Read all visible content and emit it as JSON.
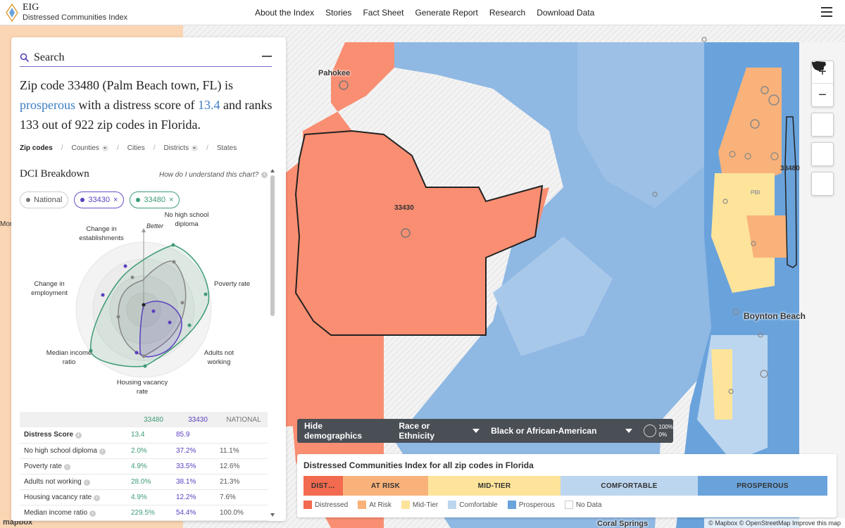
{
  "header": {
    "logo_title": "EIG",
    "logo_subtitle": "Distressed Communities Index",
    "nav": [
      "About the Index",
      "Stories",
      "Fact Sheet",
      "Generate Report",
      "Research",
      "Download Data"
    ]
  },
  "panel": {
    "search_label": "Search",
    "headline": {
      "part1": "Zip code 33480 (Palm Beach town, FL) is ",
      "status": "prosperous",
      "part2": " with a distress score of ",
      "score": "13.4",
      "part3": " and ranks 133 out of 922 zip codes in Florida."
    },
    "geo_tabs": [
      "Zip codes",
      "Counties",
      "Cities",
      "Districts",
      "States"
    ],
    "breakdown_title": "DCI Breakdown",
    "help_text": "How do I understand this chart?",
    "chips": [
      {
        "label": "National",
        "color": "#777777"
      },
      {
        "label": "33430",
        "color": "#5b3fbf"
      },
      {
        "label": "33480",
        "color": "#3e9b74"
      }
    ]
  },
  "radar": {
    "better_label": "Better",
    "axes": [
      "No high school diploma",
      "Poverty rate",
      "Adults not working",
      "Housing vacancy rate",
      "Median income ratio",
      "Change in employment",
      "Change in establishments"
    ]
  },
  "table": {
    "headers": [
      "",
      "33480",
      "33430",
      "NATIONAL"
    ],
    "rows": [
      [
        "Distress Score",
        "13.4",
        "85.9",
        ""
      ],
      [
        "No high school diploma",
        "2.0%",
        "37.2%",
        "11.1%"
      ],
      [
        "Poverty rate",
        "4.9%",
        "33.5%",
        "12.6%"
      ],
      [
        "Adults not working",
        "28.0%",
        "38.1%",
        "21.3%"
      ],
      [
        "Housing vacancy rate",
        "4.9%",
        "12.2%",
        "7.6%"
      ],
      [
        "Median income ratio",
        "229.5%",
        "54.4%",
        "100.0%"
      ]
    ]
  },
  "map": {
    "labels": {
      "zip1": "33430",
      "zip2": "33480",
      "city1": "Pahokee",
      "city2": "Boynton Beach",
      "city3": "Coral Springs",
      "city4": "PBI",
      "edge": "Mon"
    },
    "mapbox": "mapbox",
    "attribution": "© Mapbox © OpenStreetMap Improve this map"
  },
  "demographics": {
    "hide_label": "Hide demographics",
    "select1": "Race or Ethnicity",
    "select2": "Black or African-American",
    "pct_max": "100%",
    "pct_min": "0%"
  },
  "legend": {
    "title": "Distressed Communities Index for all zip codes in Florida",
    "bar": [
      {
        "label": "DIST…",
        "color": "#f26a4f"
      },
      {
        "label": "AT RISK",
        "color": "#f9b27a"
      },
      {
        "label": "MID-TIER",
        "color": "#fde49a"
      },
      {
        "label": "COMFORTABLE",
        "color": "#bcd6ef"
      },
      {
        "label": "PROSPEROUS",
        "color": "#6aa3dc"
      }
    ],
    "keys": [
      {
        "label": "Distressed",
        "color": "#f26a4f"
      },
      {
        "label": "At Risk",
        "color": "#f9b27a"
      },
      {
        "label": "Mid-Tier",
        "color": "#fde49a"
      },
      {
        "label": "Comfortable",
        "color": "#bcd6ef"
      },
      {
        "label": "Prosperous",
        "color": "#6aa3dc"
      },
      {
        "label": "No Data",
        "color": "#ffffff"
      }
    ]
  }
}
